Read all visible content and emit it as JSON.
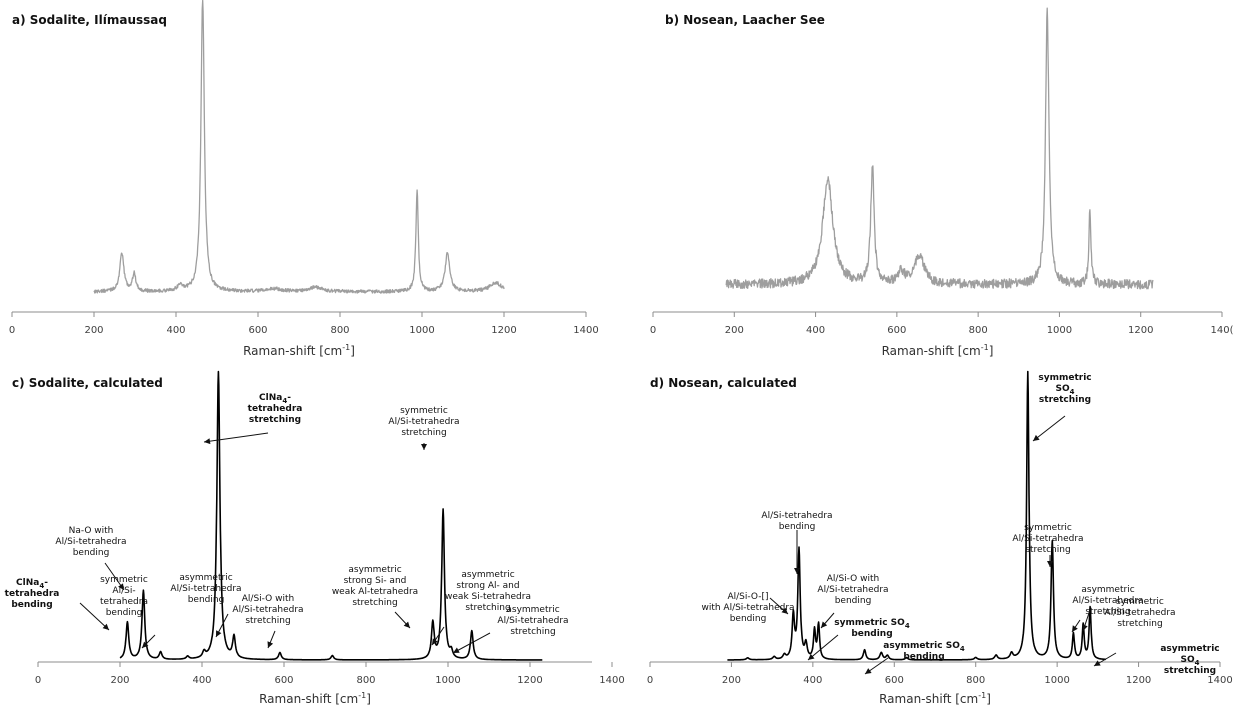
{
  "colors": {
    "measured": "#9e9e9e",
    "calculated": "#000000",
    "axis": "#8c8c8c",
    "text": "#111111"
  },
  "chart_data": [
    {
      "type": "line",
      "title": "a) Sodalite, Ilímaussaq",
      "xlabel": "Raman-shift [cm",
      "xlabel_sup": "-1",
      "xlabel_end": "]",
      "xlim": [
        0,
        1400
      ],
      "xticks": [
        "0",
        "200",
        "400",
        "600",
        "800",
        "1000",
        "1200",
        "1400"
      ],
      "ylim": [
        0,
        100
      ],
      "grid": false,
      "legend": "none",
      "series": [
        {
          "style": "measured",
          "range": [
            200,
            1200
          ],
          "baseline": 3.5,
          "noise": 0.6,
          "peaks": [
            [
              268,
              13,
              6
            ],
            [
              298,
              6,
              5
            ],
            [
              410,
              2,
              8
            ],
            [
              465,
              100,
              5
            ],
            [
              640,
              1,
              20
            ],
            [
              740,
              1.5,
              20
            ],
            [
              988,
              35,
              3.5
            ],
            [
              1062,
              13,
              7
            ],
            [
              1180,
              3,
              18
            ]
          ]
        }
      ]
    },
    {
      "type": "line",
      "title": "b) Nosean, Laacher See",
      "xlabel": "Raman-shift [cm",
      "xlabel_sup": "-1",
      "xlabel_end": "]",
      "xlim": [
        0,
        1400
      ],
      "xticks": [
        "0",
        "200",
        "400",
        "600",
        "800",
        "1000",
        "1200",
        "140("
      ],
      "ylim": [
        0,
        100
      ],
      "grid": false,
      "legend": "none",
      "series": [
        {
          "style": "measured",
          "range": [
            180,
            1230
          ],
          "baseline": 6,
          "noise": 1.6,
          "peaks": [
            [
              430,
              36,
              15
            ],
            [
              540,
              40,
              5
            ],
            [
              610,
              4,
              10
            ],
            [
              655,
              10,
              14
            ],
            [
              970,
              94,
              5
            ],
            [
              1075,
              26,
              3
            ]
          ]
        }
      ]
    },
    {
      "type": "line",
      "title": "c) Sodalite, calculated",
      "xlabel": "Raman-shift [cm",
      "xlabel_sup": "-1",
      "xlabel_end": "]",
      "xlim": [
        0,
        1400
      ],
      "xticks": [
        "0",
        "200",
        "400",
        "600",
        "800",
        "1000",
        "1200",
        "1400"
      ],
      "ylim": [
        0,
        100
      ],
      "grid": false,
      "legend": "none",
      "series": [
        {
          "style": "calculated",
          "range": [
            200,
            1230
          ],
          "baseline": 0,
          "noise": 0,
          "peaks": [
            [
              218,
              13,
              4
            ],
            [
              257,
              24,
              4
            ],
            [
              299,
              2.6,
              4
            ],
            [
              365,
              1,
              4
            ],
            [
              405,
              2,
              4
            ],
            [
              440,
              100,
              4.5
            ],
            [
              478,
              7.5,
              4
            ],
            [
              590,
              2.5,
              4
            ],
            [
              718,
              1.5,
              4
            ],
            [
              963,
              12.5,
              4
            ],
            [
              988,
              52,
              4
            ],
            [
              1008,
              2.5,
              4
            ],
            [
              1058,
              10,
              4
            ]
          ]
        }
      ],
      "annotations": [
        {
          "lines": [
            "ClNa",
            "tetrahedra",
            "bending"
          ],
          "bold": true,
          "line1_sub": "4",
          "line1_tail": "-",
          "arrow_from": 80,
          "arrow_to": 109
        },
        {
          "lines": [
            "Na-O with",
            "Al/Si-tetrahedra",
            "bending"
          ],
          "bold": false,
          "arrow_from": 64,
          "arrow_to": 124
        },
        {
          "lines": [
            "symmetric",
            "Al/Si-",
            "tetrahedra",
            "bending"
          ],
          "bold": false,
          "arrow_from": 125,
          "arrow_to": 142
        },
        {
          "lines": [
            "ClNa",
            "tetrahedra",
            "stretching"
          ],
          "bold": true,
          "line1_sub": "4",
          "line1_tail": "-",
          "arrow_from": 203,
          "arrow_to": 204
        },
        {
          "lines": [
            "asymmetric",
            "Al/Si-tetrahedra",
            "bending"
          ],
          "bold": false,
          "arrow_from": 165,
          "arrow_to": 216
        },
        {
          "lines": [
            "Al/Si-O with",
            "Al/Si-tetrahedra",
            "stretching"
          ],
          "bold": false,
          "arrow_from": 212,
          "arrow_to": 268
        },
        {
          "lines": [
            "asymmetric",
            "strong Si- and",
            "weak Al-tetrahedra",
            "stretching"
          ],
          "bold": false,
          "arrow_from": 324,
          "arrow_to": 410
        },
        {
          "lines": [
            "symmetric",
            "Al/Si-tetrahedra",
            "stretching"
          ],
          "bold": false,
          "arrow_from": 422,
          "arrow_to": 424
        },
        {
          "lines": [
            "asymmetric",
            "strong Al- and",
            "weak Si-tetrahedra",
            "stretching"
          ],
          "bold": false,
          "arrow_from": 439,
          "arrow_to": 432
        },
        {
          "lines": [
            "asymmetric",
            "Al/Si-tetrahedra",
            "stretching"
          ],
          "bold": false,
          "arrow_from": 490,
          "arrow_to": 453
        }
      ]
    },
    {
      "type": "line",
      "title": "d) Nosean, calculated",
      "xlabel": "Raman-shift [cm",
      "xlabel_sup": "-1",
      "xlabel_end": "]",
      "xlim": [
        0,
        1400
      ],
      "xticks": [
        "0",
        "200",
        "400",
        "600",
        "800",
        "1000",
        "1200",
        "1400"
      ],
      "ylim": [
        0,
        100
      ],
      "grid": false,
      "legend": "none",
      "series": [
        {
          "style": "calculated",
          "range": [
            190,
            1120
          ],
          "baseline": 0,
          "noise": 0,
          "peaks": [
            [
              240,
              0.7,
              4
            ],
            [
              305,
              1,
              4
            ],
            [
              330,
              1.5,
              4
            ],
            [
              352,
              15,
              3.5
            ],
            [
              366,
              38,
              3.5
            ],
            [
              383,
              5,
              3.5
            ],
            [
              404,
              10,
              3
            ],
            [
              414,
              12,
              3
            ],
            [
              527,
              3.5,
              3.5
            ],
            [
              568,
              2.5,
              4
            ],
            [
              583,
              1.5,
              4
            ],
            [
              630,
              0.8,
              4
            ],
            [
              800,
              0.8,
              4
            ],
            [
              850,
              1.5,
              4
            ],
            [
              888,
              2,
              4
            ],
            [
              928,
              100,
              3.5
            ],
            [
              988,
              41,
              3.5
            ],
            [
              1040,
              9,
              3
            ],
            [
              1064,
              12,
              3
            ],
            [
              1081,
              18,
              3
            ]
          ]
        }
      ],
      "annotations": [
        {
          "lines": [
            "Al/Si-O-[]",
            "with Al/Si-tetrahedra",
            "bending"
          ],
          "bold": false,
          "arrow_from": 757,
          "arrow_to": 788
        },
        {
          "lines": [
            "Al/Si-tetrahedra",
            "bending"
          ],
          "bold": false,
          "arrow_from": 797,
          "arrow_to": 797
        },
        {
          "lines": [
            "Al/Si-O with",
            "Al/Si-tetrahedra",
            "bending"
          ],
          "bold": false,
          "arrow_from": 845,
          "arrow_to": 821
        },
        {
          "lines": [
            "symmetric SO",
            "bending"
          ],
          "bold": true,
          "line1_sub": "4",
          "line1_tail": "",
          "arrow_from": 838,
          "arrow_to": 808
        },
        {
          "lines": [
            "asymmetric SO",
            "bending"
          ],
          "bold": true,
          "line1_sub": "4",
          "line1_tail": "",
          "arrow_from": 908,
          "arrow_to": 865
        },
        {
          "lines": [
            "symmetric",
            "SO",
            "stretching"
          ],
          "bold": true,
          "line2_sub": "4",
          "arrow_from": 1065,
          "arrow_to": 1033
        },
        {
          "lines": [
            "symmetric",
            "Al/Si-tetrahedra",
            "stretching"
          ],
          "bold": false,
          "arrow_from": 1048,
          "arrow_to": 1050
        },
        {
          "lines": [
            "asymmetric",
            "Al/Si-tetrahedra",
            "stretching"
          ],
          "bold": false,
          "arrow_from": 1080,
          "arrow_to": 1072
        },
        {
          "lines": [
            "symmetric",
            "Al/Si-tetrahedra",
            "stretching"
          ],
          "bold": false,
          "arrow_from": 1082,
          "arrow_to": 1083
        },
        {
          "lines": [
            "asymmetric",
            "SO",
            "stretching"
          ],
          "bold": true,
          "line2_sub": "4",
          "arrow_from": 1116,
          "arrow_to": 1094
        }
      ]
    }
  ]
}
